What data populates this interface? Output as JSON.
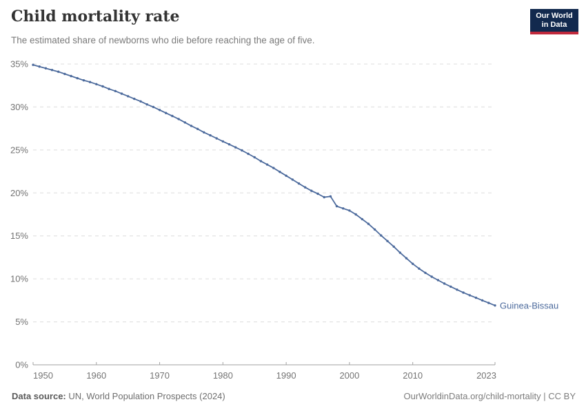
{
  "header": {
    "title": "Child mortality rate",
    "subtitle": "The estimated share of newborns who die before reaching the age of five.",
    "logo": {
      "line1": "Our World",
      "line2": "in Data"
    }
  },
  "footer": {
    "source_label": "Data source:",
    "source_text": " UN, World Population Prospects (2024)",
    "right_text": "OurWorldinData.org/child-mortality | CC BY"
  },
  "colors": {
    "line": "#4C6A9C",
    "entity_label": "#4C6A9C",
    "grid": "#DCDCDC",
    "axis": "#A1A1A1",
    "tick_label": "#737373",
    "logo_bg": "#12294E",
    "logo_red": "#C0293C"
  },
  "chart_data": {
    "type": "line",
    "title": "Child mortality rate",
    "subtitle": "The estimated share of newborns who die before reaching the age of five.",
    "legend": "end-of-line entity label",
    "grid": "horizontal dashed",
    "xlim": [
      1950,
      2023
    ],
    "ylim": [
      0,
      35
    ],
    "x_ticks": [
      {
        "value": 1950,
        "label": "1950"
      },
      {
        "value": 1960,
        "label": "1960"
      },
      {
        "value": 1970,
        "label": "1970"
      },
      {
        "value": 1980,
        "label": "1980"
      },
      {
        "value": 1990,
        "label": "1990"
      },
      {
        "value": 2000,
        "label": "2000"
      },
      {
        "value": 2010,
        "label": "2010"
      },
      {
        "value": 2023,
        "label": "2023"
      }
    ],
    "y_ticks": [
      {
        "value": 0,
        "label": "0%"
      },
      {
        "value": 5,
        "label": "5%"
      },
      {
        "value": 10,
        "label": "10%"
      },
      {
        "value": 15,
        "label": "15%"
      },
      {
        "value": 20,
        "label": "20%"
      },
      {
        "value": 25,
        "label": "25%"
      },
      {
        "value": 30,
        "label": "30%"
      },
      {
        "value": 35,
        "label": "35%"
      }
    ],
    "series": [
      {
        "name": "Guinea-Bissau",
        "unit": "%",
        "x": [
          1950,
          1951,
          1952,
          1953,
          1954,
          1955,
          1956,
          1957,
          1958,
          1959,
          1960,
          1961,
          1962,
          1963,
          1964,
          1965,
          1966,
          1967,
          1968,
          1969,
          1970,
          1971,
          1972,
          1973,
          1974,
          1975,
          1976,
          1977,
          1978,
          1979,
          1980,
          1981,
          1982,
          1983,
          1984,
          1985,
          1986,
          1987,
          1988,
          1989,
          1990,
          1991,
          1992,
          1993,
          1994,
          1995,
          1996,
          1997,
          1998,
          1999,
          2000,
          2001,
          2002,
          2003,
          2004,
          2005,
          2006,
          2007,
          2008,
          2009,
          2010,
          2011,
          2012,
          2013,
          2014,
          2015,
          2016,
          2017,
          2018,
          2019,
          2020,
          2021,
          2022,
          2023
        ],
        "values": [
          34.9,
          34.7,
          34.5,
          34.3,
          34.1,
          33.85,
          33.6,
          33.35,
          33.1,
          32.9,
          32.65,
          32.4,
          32.1,
          31.85,
          31.55,
          31.25,
          30.95,
          30.65,
          30.3,
          30.0,
          29.65,
          29.3,
          28.95,
          28.6,
          28.2,
          27.8,
          27.45,
          27.05,
          26.7,
          26.35,
          26.0,
          25.65,
          25.3,
          24.95,
          24.55,
          24.15,
          23.7,
          23.3,
          22.9,
          22.45,
          22.0,
          21.55,
          21.1,
          20.65,
          20.25,
          19.9,
          19.5,
          19.6,
          18.45,
          18.2,
          17.95,
          17.5,
          16.95,
          16.4,
          15.75,
          15.05,
          14.4,
          13.75,
          13.05,
          12.4,
          11.75,
          11.2,
          10.7,
          10.25,
          9.85,
          9.45,
          9.1,
          8.75,
          8.4,
          8.1,
          7.8,
          7.5,
          7.2,
          6.9
        ]
      }
    ]
  }
}
